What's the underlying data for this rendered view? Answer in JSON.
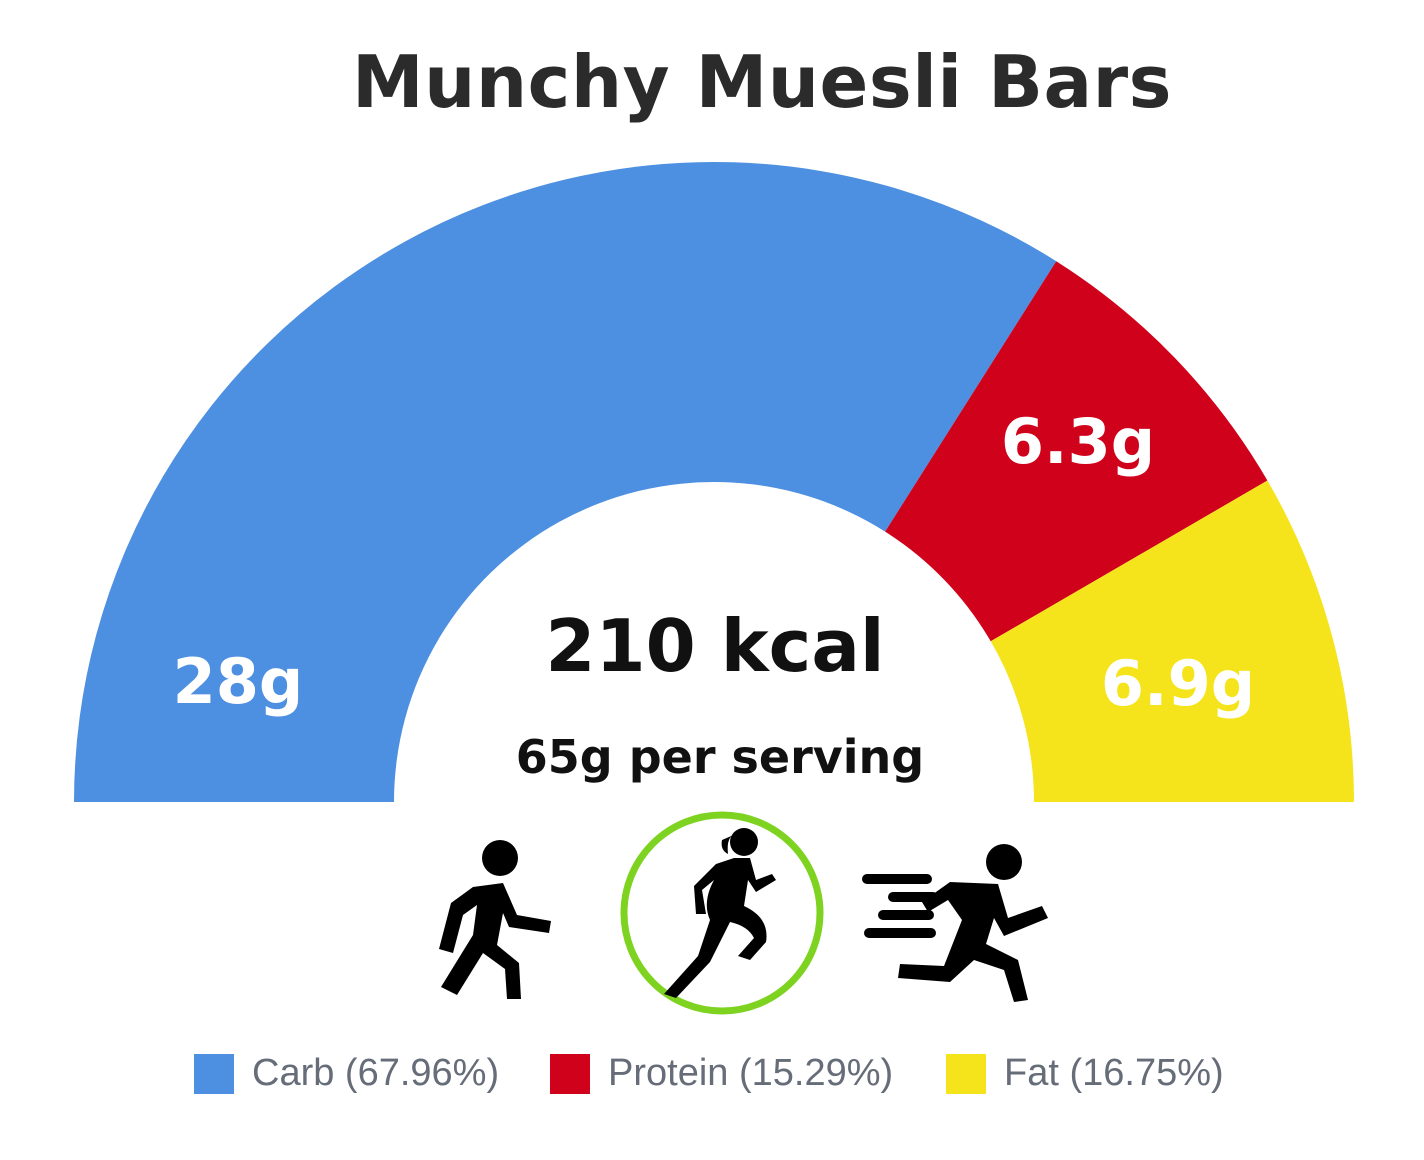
{
  "title": "Munchy Muesli Bars",
  "center": {
    "kcal": "210 kcal",
    "serving": "65g per serving"
  },
  "chart_data": {
    "type": "pie",
    "subtype": "semicircle-donut",
    "title": "Munchy Muesli Bars",
    "categories": [
      "Carb",
      "Protein",
      "Fat"
    ],
    "values": [
      67.96,
      15.29,
      16.75
    ],
    "data_labels": [
      "28g",
      "6.3g",
      "6.9g"
    ],
    "legend_labels": [
      "Carb (67.96%)",
      "Protein (15.29%)",
      "Fat (16.75%)"
    ],
    "colors": [
      "#4d8fe0",
      "#d0021b",
      "#f5e41c"
    ],
    "legend_position": "bottom"
  },
  "activity_icons": [
    {
      "icon": "walking-person-icon",
      "selected": false
    },
    {
      "icon": "running-woman-icon",
      "selected": true
    },
    {
      "icon": "sprinting-person-icon",
      "selected": false
    }
  ],
  "selected_ring_color": "#7ed321"
}
